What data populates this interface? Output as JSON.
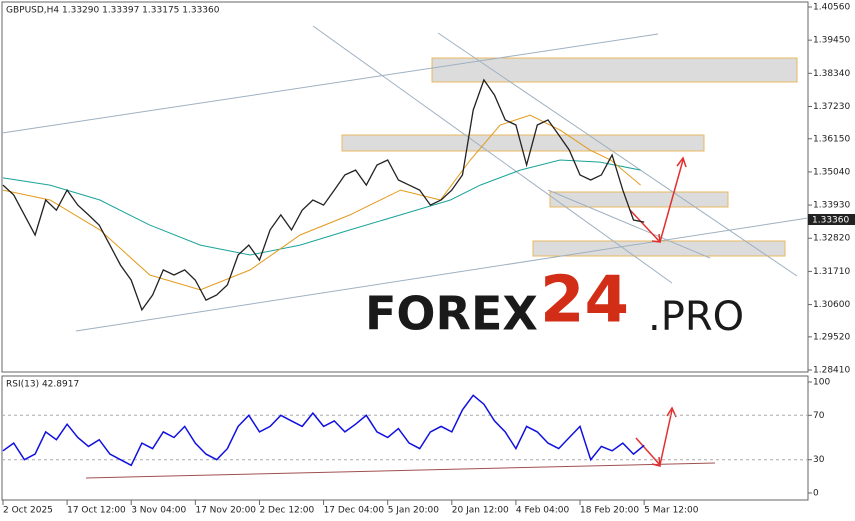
{
  "chart_data": [
    {
      "type": "line",
      "title": "GBPUSD,H4  1.33290 1.33397 1.33175 1.33360",
      "last_price_label": "1.33360",
      "watermark": [
        "FOREX",
        "24",
        ".PRO"
      ],
      "x": [
        0,
        15,
        30,
        45,
        60,
        75,
        90,
        105,
        120,
        135,
        150,
        165,
        180,
        195,
        210,
        225,
        240,
        255,
        270,
        285,
        300,
        315,
        330,
        345,
        360,
        375,
        390,
        405,
        420,
        435,
        450,
        465,
        480,
        495,
        510,
        525,
        540,
        555,
        570,
        585,
        600,
        615,
        630,
        645,
        660,
        675,
        690,
        705,
        720,
        735,
        750,
        765,
        780,
        795,
        810,
        825,
        840,
        855,
        870,
        885,
        900
      ],
      "xlim": [
        0,
        1130
      ],
      "xticks": [
        {
          "value": 0,
          "label": "2 Oct 2025"
        },
        {
          "value": 90,
          "label": "17 Oct 12:00"
        },
        {
          "value": 180,
          "label": "3 Nov 04:00"
        },
        {
          "value": 270,
          "label": "17 Nov 20:00"
        },
        {
          "value": 360,
          "label": "2 Dec 12:00"
        },
        {
          "value": 450,
          "label": "17 Dec 04:00"
        },
        {
          "value": 540,
          "label": "5 Jan 20:00"
        },
        {
          "value": 630,
          "label": "20 Jan 12:00"
        },
        {
          "value": 720,
          "label": "4 Feb 04:00"
        },
        {
          "value": 810,
          "label": "18 Feb 20:00"
        },
        {
          "value": 900,
          "label": "5 Mar 12:00"
        }
      ],
      "ylim": [
        1.2841,
        1.4056
      ],
      "yticks": [
        {
          "value": 1.4056,
          "label": "1.40560"
        },
        {
          "value": 1.3945,
          "label": "1.39450"
        },
        {
          "value": 1.3834,
          "label": "1.38340"
        },
        {
          "value": 1.3723,
          "label": "1.37230"
        },
        {
          "value": 1.3615,
          "label": "1.36150"
        },
        {
          "value": 1.3504,
          "label": "1.35040"
        },
        {
          "value": 1.3393,
          "label": "1.33930"
        },
        {
          "value": 1.3282,
          "label": "1.32820"
        },
        {
          "value": 1.3171,
          "label": "1.31710"
        },
        {
          "value": 1.306,
          "label": "1.30600"
        },
        {
          "value": 1.2952,
          "label": "1.29520"
        },
        {
          "value": 1.2841,
          "label": "1.28410"
        }
      ],
      "series": [
        {
          "color": "#222222",
          "values": [
            1.346,
            1.3427,
            1.336,
            1.3293,
            1.341,
            1.3376,
            1.3443,
            1.3393,
            1.336,
            1.3326,
            1.3259,
            1.3192,
            1.3142,
            1.3042,
            1.3092,
            1.3176,
            1.3159,
            1.3176,
            1.3142,
            1.3075,
            1.3092,
            1.3126,
            1.3226,
            1.3259,
            1.3209,
            1.331,
            1.336,
            1.331,
            1.3376,
            1.341,
            1.3393,
            1.3443,
            1.3494,
            1.351,
            1.346,
            1.3527,
            1.3544,
            1.3477,
            1.346,
            1.3443,
            1.3393,
            1.341,
            1.3443,
            1.3494,
            1.3711,
            1.3812,
            1.3761,
            1.3678,
            1.3661,
            1.3527,
            1.3661,
            1.3678,
            1.3628,
            1.3577,
            1.3494,
            1.3477,
            1.3494,
            1.3561,
            1.3443,
            1.3343,
            1.3336
          ]
        },
        {
          "color": "#e39a1c",
          "x": [
            0,
            66,
            136,
            206,
            277,
            347,
            417,
            487,
            558,
            614,
            656,
            698,
            740,
            782,
            824,
            853,
            895
          ],
          "values": [
            1.3443,
            1.341,
            1.331,
            1.3159,
            1.3109,
            1.3176,
            1.3293,
            1.336,
            1.3443,
            1.341,
            1.3544,
            1.3661,
            1.3694,
            1.3644,
            1.3577,
            1.3544,
            1.346
          ]
        },
        {
          "color": "#1aa39a",
          "x": [
            0,
            66,
            136,
            206,
            277,
            347,
            417,
            487,
            558,
            628,
            670,
            726,
            782,
            838,
            895
          ],
          "values": [
            1.3484,
            1.346,
            1.341,
            1.3326,
            1.3259,
            1.3226,
            1.3259,
            1.331,
            1.336,
            1.341,
            1.346,
            1.351,
            1.3544,
            1.3537,
            1.351
          ]
        }
      ]
    },
    {
      "type": "line",
      "title": "RSI(13) 42.8917",
      "ylim": [
        0,
        100
      ],
      "yticks": [
        100,
        70,
        30,
        0
      ],
      "color": "#1010e0",
      "values": [
        38,
        45,
        30,
        35,
        55,
        48,
        62,
        50,
        42,
        48,
        35,
        30,
        25,
        45,
        40,
        55,
        50,
        60,
        45,
        35,
        30,
        40,
        60,
        70,
        55,
        60,
        70,
        65,
        60,
        72,
        60,
        65,
        55,
        62,
        70,
        55,
        50,
        58,
        45,
        40,
        55,
        60,
        55,
        75,
        88,
        80,
        65,
        55,
        40,
        60,
        55,
        45,
        40,
        50,
        60,
        30,
        42,
        38,
        45,
        35,
        43
      ]
    }
  ]
}
